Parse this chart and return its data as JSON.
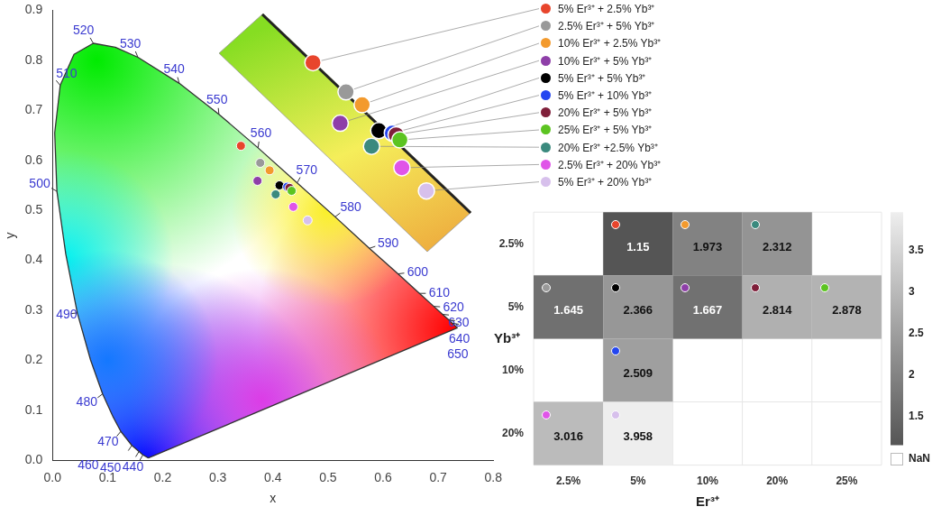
{
  "chart_data": [
    {
      "type": "scatter",
      "xlabel": "x",
      "ylabel": "y",
      "xlim": [
        0,
        0.8
      ],
      "xticks": [
        {
          "value": 0,
          "label": "0.0"
        },
        0.1,
        0.2,
        0.3,
        0.4,
        0.5,
        0.6,
        0.7,
        0.8
      ],
      "ylim": [
        0,
        0.9
      ],
      "yticks": [
        {
          "value": 0,
          "label": "0.0"
        },
        0.1,
        0.2,
        0.3,
        0.4,
        0.5,
        0.6,
        0.7,
        0.8,
        0.9
      ],
      "grid": false,
      "legend": "top right",
      "marker": "circle",
      "series": [
        {
          "name": "5% Er³⁺ + 2.5% Yb³⁺",
          "color": "#e8452c",
          "x": [
            0.342
          ],
          "values": [
            0.629
          ]
        },
        {
          "name": "2.5% Er³⁺ + 5% Yb³⁺",
          "color": "#999999",
          "x": [
            0.377
          ],
          "values": [
            0.595
          ]
        },
        {
          "name": "10% Er³⁺ + 2.5% Yb³⁺",
          "color": "#f39a2d",
          "x": [
            0.394
          ],
          "values": [
            0.58
          ]
        },
        {
          "name": "10% Er³⁺ + 5% Yb³⁺",
          "color": "#8e3fa8",
          "x": [
            0.372
          ],
          "values": [
            0.559
          ]
        },
        {
          "name": "5% Er³⁺ + 5% Yb³⁺",
          "color": "#000000",
          "x": [
            0.412
          ],
          "values": [
            0.55
          ]
        },
        {
          "name": "5% Er³⁺ + 10% Yb³⁺",
          "color": "#2446f0",
          "x": [
            0.426
          ],
          "values": [
            0.547
          ]
        },
        {
          "name": "20% Er³⁺ + 5% Yb³⁺",
          "color": "#7f1f3a",
          "x": [
            0.43
          ],
          "values": [
            0.545
          ]
        },
        {
          "name": "25% Er³⁺ + 5% Yb³⁺",
          "color": "#5cc421",
          "x": [
            0.434
          ],
          "values": [
            0.539
          ]
        },
        {
          "name": "20% Er³⁺ +2.5% Yb³⁺",
          "color": "#3b8a7e",
          "x": [
            0.405
          ],
          "values": [
            0.532
          ]
        },
        {
          "name": "2.5% Er³⁺ + 20% Yb³⁺",
          "color": "#e055e8",
          "x": [
            0.437
          ],
          "values": [
            0.507
          ]
        },
        {
          "name": "5% Er³⁺ + 20% Yb³⁺",
          "color": "#d7c0ec",
          "x": [
            0.463
          ],
          "values": [
            0.48
          ]
        },
        {
          "type": "line",
          "marker": "none",
          "color": "#333333",
          "x": [
            0.174,
            0.164,
            0.157,
            0.144,
            0.124,
            0.11,
            0.091,
            0.069,
            0.045,
            0.024,
            0.008,
            0.004,
            0.014,
            0.039,
            0.074,
            0.114,
            0.155,
            0.23,
            0.302,
            0.373,
            0.444,
            0.513,
            0.575,
            0.627,
            0.666,
            0.692,
            0.708,
            0.719,
            0.726,
            0.735
          ],
          "values": [
            0.005,
            0.011,
            0.018,
            0.03,
            0.058,
            0.087,
            0.133,
            0.201,
            0.295,
            0.413,
            0.538,
            0.655,
            0.75,
            0.812,
            0.834,
            0.826,
            0.806,
            0.754,
            0.692,
            0.625,
            0.555,
            0.487,
            0.424,
            0.373,
            0.334,
            0.308,
            0.292,
            0.281,
            0.274,
            0.265
          ]
        }
      ],
      "annotations": [
        {
          "text": "440",
          "x": 0.164,
          "y": 0.011
        },
        {
          "text": "450",
          "x": 0.157,
          "y": 0.018
        },
        {
          "text": "460",
          "x": 0.144,
          "y": 0.03
        },
        {
          "text": "470",
          "x": 0.124,
          "y": 0.058
        },
        {
          "text": "480",
          "x": 0.091,
          "y": 0.133
        },
        {
          "text": "490",
          "x": 0.045,
          "y": 0.295
        },
        {
          "text": "500",
          "x": 0.008,
          "y": 0.538
        },
        {
          "text": "510",
          "x": 0.014,
          "y": 0.75
        },
        {
          "text": "520",
          "x": 0.074,
          "y": 0.834
        },
        {
          "text": "530",
          "x": 0.155,
          "y": 0.806
        },
        {
          "text": "540",
          "x": 0.23,
          "y": 0.754
        },
        {
          "text": "550",
          "x": 0.302,
          "y": 0.692
        },
        {
          "text": "560",
          "x": 0.373,
          "y": 0.625
        },
        {
          "text": "570",
          "x": 0.444,
          "y": 0.555
        },
        {
          "text": "580",
          "x": 0.513,
          "y": 0.487
        },
        {
          "text": "590",
          "x": 0.575,
          "y": 0.424
        },
        {
          "text": "600",
          "x": 0.627,
          "y": 0.373
        },
        {
          "text": "610",
          "x": 0.666,
          "y": 0.334
        },
        {
          "text": "620",
          "x": 0.692,
          "y": 0.308
        },
        {
          "text": "630",
          "x": 0.708,
          "y": 0.292
        },
        {
          "text": "640",
          "x": 0.719,
          "y": 0.281
        },
        {
          "text": "650",
          "x": 0.726,
          "y": 0.274
        }
      ]
    },
    {
      "type": "heatmap",
      "xlabel": "Er³⁺",
      "ylabel": "Yb³⁺",
      "categories": [
        "2.5%",
        "5%",
        "10%",
        "20%",
        "25%"
      ],
      "y_categories": [
        "2.5%",
        "5%",
        "10%",
        "20%"
      ],
      "cells": [
        [
          null,
          1.15,
          1.973,
          2.312,
          null
        ],
        [
          1.645,
          2.366,
          1.667,
          2.814,
          2.878
        ],
        [
          null,
          2.509,
          null,
          null,
          null
        ],
        [
          3.016,
          3.958,
          null,
          null,
          null
        ]
      ],
      "clim": [
        1.15,
        3.958
      ],
      "cticks": [
        1.5,
        2,
        2.5,
        3,
        3.5
      ],
      "data_labels": true,
      "grid": true,
      "annotations": [
        "NaN"
      ]
    }
  ]
}
